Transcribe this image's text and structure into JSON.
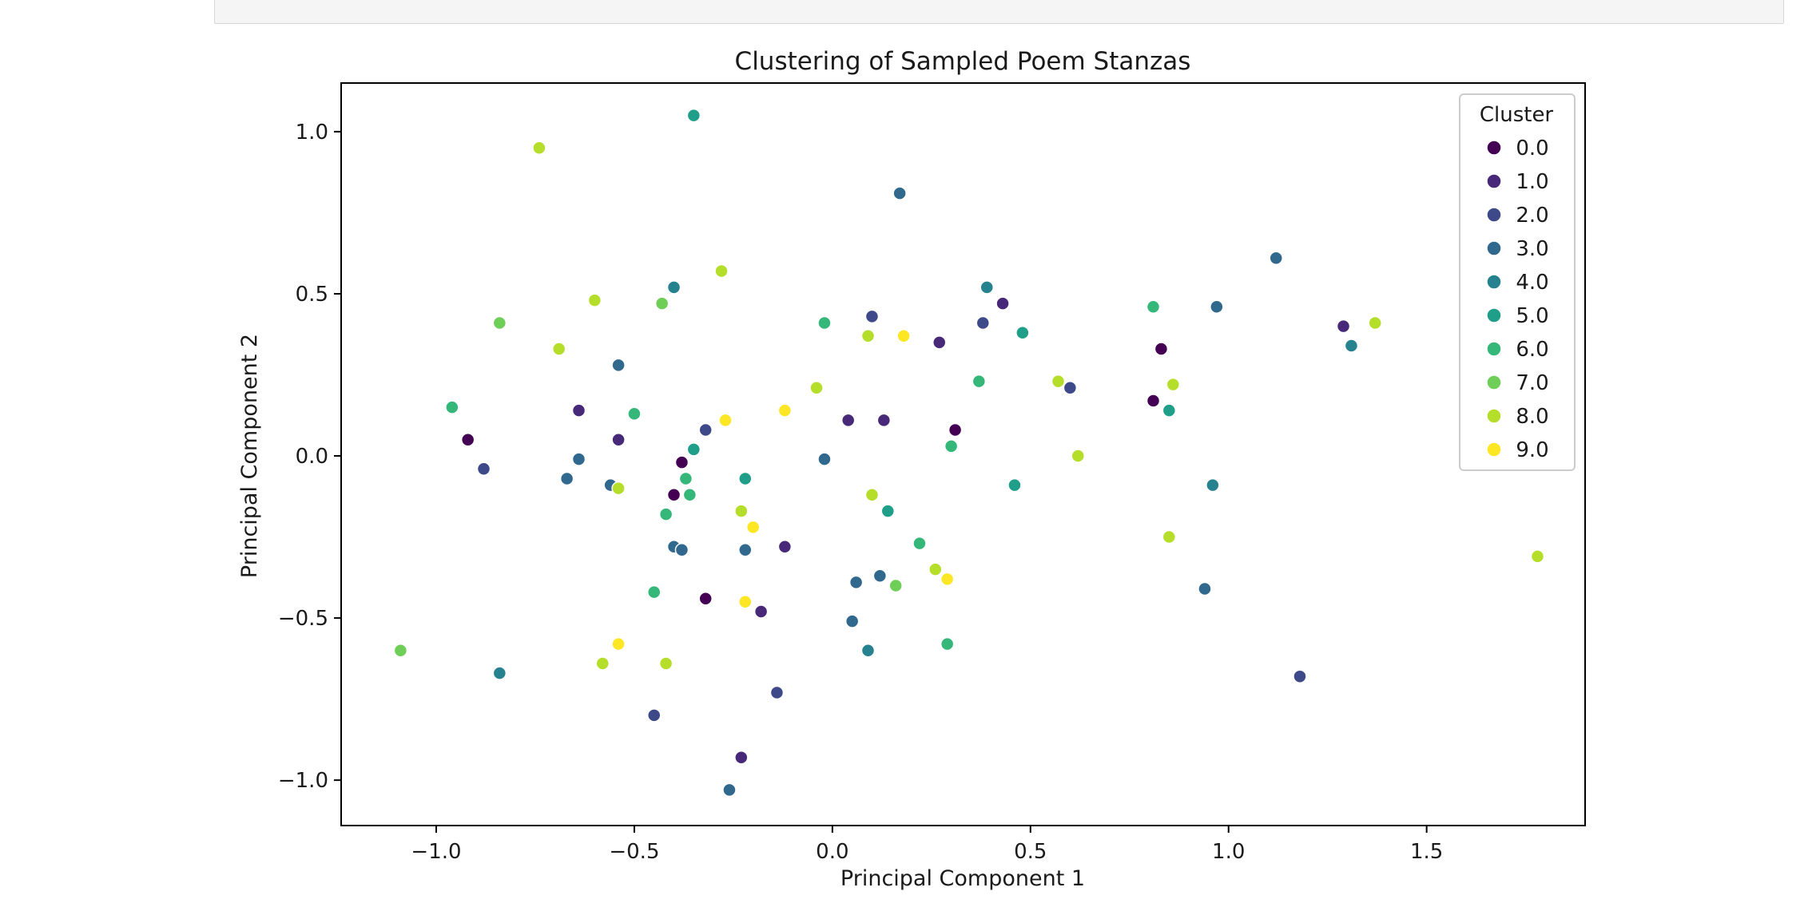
{
  "chart_data": {
    "type": "scatter",
    "title": "Clustering of Sampled Poem Stanzas",
    "xlabel": "Principal Component 1",
    "ylabel": "Principal Component 2",
    "xlim": [
      -1.24,
      1.9
    ],
    "ylim": [
      -1.14,
      1.15
    ],
    "xticks": [
      -1.0,
      -0.5,
      0.0,
      0.5,
      1.0,
      1.5
    ],
    "yticks": [
      -1.0,
      -0.5,
      0.0,
      0.5,
      1.0
    ],
    "xtick_labels": [
      "−1.0",
      "−0.5",
      "0.0",
      "0.5",
      "1.0",
      "1.5"
    ],
    "ytick_labels": [
      "−1.0",
      "−0.5",
      "0.0",
      "0.5",
      "1.0"
    ],
    "grid": false,
    "legend": {
      "title": "Cluster",
      "position": "top-right",
      "entries": [
        "0.0",
        "1.0",
        "2.0",
        "3.0",
        "4.0",
        "5.0",
        "6.0",
        "7.0",
        "8.0",
        "9.0"
      ],
      "colors": [
        "#440154",
        "#482878",
        "#3e4989",
        "#31688e",
        "#26828e",
        "#1f9e89",
        "#35b779",
        "#6ece58",
        "#b5de2b",
        "#fde725"
      ]
    },
    "series": [
      {
        "name": "0.0",
        "points": [
          [
            -0.92,
            0.05
          ],
          [
            -0.38,
            -0.02
          ],
          [
            -0.4,
            -0.12
          ],
          [
            -0.32,
            -0.44
          ],
          [
            0.31,
            0.08
          ],
          [
            0.81,
            0.17
          ],
          [
            0.83,
            0.33
          ]
        ]
      },
      {
        "name": "1.0",
        "points": [
          [
            -0.64,
            0.14
          ],
          [
            -0.54,
            0.05
          ],
          [
            -0.12,
            -0.28
          ],
          [
            -0.18,
            -0.48
          ],
          [
            -0.23,
            -0.93
          ],
          [
            0.04,
            0.11
          ],
          [
            0.13,
            0.11
          ],
          [
            0.27,
            0.35
          ],
          [
            0.43,
            0.47
          ],
          [
            1.29,
            0.4
          ]
        ]
      },
      {
        "name": "2.0",
        "points": [
          [
            -0.88,
            -0.04
          ],
          [
            -0.32,
            0.08
          ],
          [
            -0.45,
            -0.8
          ],
          [
            -0.14,
            -0.73
          ],
          [
            0.1,
            0.43
          ],
          [
            0.38,
            0.41
          ],
          [
            0.6,
            0.21
          ],
          [
            1.18,
            -0.68
          ]
        ]
      },
      {
        "name": "3.0",
        "points": [
          [
            -0.54,
            0.28
          ],
          [
            -0.64,
            -0.01
          ],
          [
            -0.67,
            -0.07
          ],
          [
            -0.56,
            -0.09
          ],
          [
            -0.4,
            -0.28
          ],
          [
            -0.38,
            -0.29
          ],
          [
            -0.22,
            -0.29
          ],
          [
            -0.26,
            -1.03
          ],
          [
            -0.02,
            -0.01
          ],
          [
            0.06,
            -0.39
          ],
          [
            0.05,
            -0.51
          ],
          [
            0.12,
            -0.37
          ],
          [
            0.17,
            0.81
          ],
          [
            0.94,
            -0.41
          ],
          [
            0.97,
            0.46
          ],
          [
            1.12,
            0.61
          ]
        ]
      },
      {
        "name": "4.0",
        "points": [
          [
            -0.4,
            0.52
          ],
          [
            -0.84,
            -0.67
          ],
          [
            0.09,
            -0.6
          ],
          [
            0.39,
            0.52
          ],
          [
            0.96,
            -0.09
          ],
          [
            1.31,
            0.34
          ]
        ]
      },
      {
        "name": "5.0",
        "points": [
          [
            -0.35,
            1.05
          ],
          [
            -0.35,
            0.02
          ],
          [
            -0.22,
            -0.07
          ],
          [
            0.14,
            -0.17
          ],
          [
            0.46,
            -0.09
          ],
          [
            0.48,
            0.38
          ],
          [
            0.85,
            0.14
          ]
        ]
      },
      {
        "name": "6.0",
        "points": [
          [
            -0.96,
            0.15
          ],
          [
            -0.5,
            0.13
          ],
          [
            -0.37,
            -0.07
          ],
          [
            -0.42,
            -0.18
          ],
          [
            -0.36,
            -0.12
          ],
          [
            -0.45,
            -0.42
          ],
          [
            -0.02,
            0.41
          ],
          [
            0.22,
            -0.27
          ],
          [
            0.3,
            0.03
          ],
          [
            0.29,
            -0.58
          ],
          [
            0.37,
            0.23
          ],
          [
            0.81,
            0.46
          ]
        ]
      },
      {
        "name": "7.0",
        "points": [
          [
            -0.84,
            0.41
          ],
          [
            -0.43,
            0.47
          ],
          [
            -1.09,
            -0.6
          ],
          [
            0.16,
            -0.4
          ]
        ]
      },
      {
        "name": "8.0",
        "points": [
          [
            -0.74,
            0.95
          ],
          [
            -0.69,
            0.33
          ],
          [
            -0.6,
            0.48
          ],
          [
            -0.28,
            0.57
          ],
          [
            -0.54,
            -0.1
          ],
          [
            -0.23,
            -0.17
          ],
          [
            -0.04,
            0.21
          ],
          [
            0.09,
            0.37
          ],
          [
            0.1,
            -0.12
          ],
          [
            0.26,
            -0.35
          ],
          [
            -0.58,
            -0.64
          ],
          [
            -0.42,
            -0.64
          ],
          [
            0.57,
            0.23
          ],
          [
            0.62,
            0.0
          ],
          [
            0.86,
            0.22
          ],
          [
            0.85,
            -0.25
          ],
          [
            1.37,
            0.41
          ],
          [
            1.78,
            -0.31
          ]
        ]
      },
      {
        "name": "9.0",
        "points": [
          [
            -0.27,
            0.11
          ],
          [
            -0.12,
            0.14
          ],
          [
            -0.2,
            -0.22
          ],
          [
            -0.22,
            -0.45
          ],
          [
            -0.54,
            -0.58
          ],
          [
            0.18,
            0.37
          ],
          [
            0.29,
            -0.38
          ]
        ]
      }
    ]
  }
}
